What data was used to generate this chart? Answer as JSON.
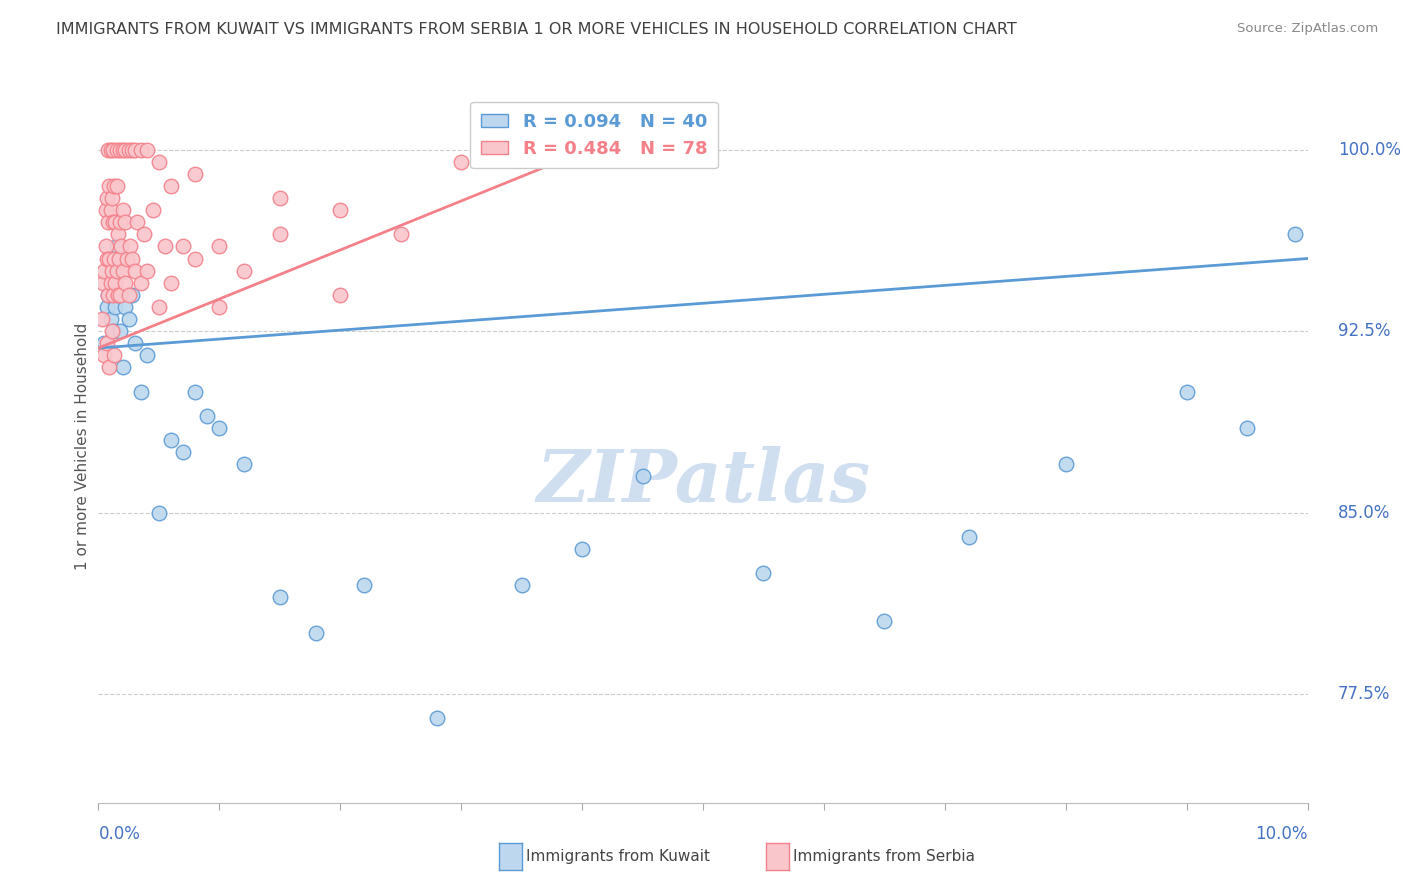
{
  "title": "IMMIGRANTS FROM KUWAIT VS IMMIGRANTS FROM SERBIA 1 OR MORE VEHICLES IN HOUSEHOLD CORRELATION CHART",
  "source": "Source: ZipAtlas.com",
  "ylabel": "1 or more Vehicles in Household",
  "xlim": [
    0.0,
    10.0
  ],
  "ylim": [
    73.0,
    102.5
  ],
  "yticks": [
    77.5,
    85.0,
    92.5,
    100.0
  ],
  "ytick_labels": [
    "77.5%",
    "85.0%",
    "92.5%",
    "100.0%"
  ],
  "kuwait_color": "#5b9bd5",
  "kuwait_color_fill": "#bdd7ee",
  "serbia_color": "#f4808a",
  "serbia_color_fill": "#f9c6cc",
  "kuwait_R": 0.094,
  "kuwait_N": 40,
  "serbia_R": 0.484,
  "serbia_N": 78,
  "bg_color": "#ffffff",
  "grid_color": "#cccccc",
  "title_color": "#404040",
  "tick_label_color": "#4472c4",
  "watermark_color": "#d0dff0",
  "kuwait_x": [
    0.05,
    0.07,
    0.08,
    0.09,
    0.1,
    0.11,
    0.12,
    0.13,
    0.14,
    0.15,
    0.16,
    0.18,
    0.2,
    0.22,
    0.25,
    0.28,
    0.3,
    0.35,
    0.4,
    0.5,
    0.6,
    0.7,
    0.8,
    0.9,
    1.0,
    1.2,
    1.5,
    1.8,
    2.2,
    2.8,
    3.5,
    4.0,
    4.5,
    5.5,
    6.5,
    7.2,
    8.0,
    9.0,
    9.5,
    9.9
  ],
  "kuwait_y": [
    92.0,
    93.5,
    94.0,
    95.5,
    93.0,
    94.5,
    92.5,
    95.0,
    93.5,
    96.0,
    94.0,
    92.5,
    91.0,
    93.5,
    93.0,
    94.0,
    92.0,
    90.0,
    91.5,
    85.0,
    88.0,
    87.5,
    90.0,
    89.0,
    88.5,
    87.0,
    81.5,
    80.0,
    82.0,
    76.5,
    82.0,
    83.5,
    86.5,
    82.5,
    80.5,
    84.0,
    87.0,
    90.0,
    88.5,
    96.5
  ],
  "serbia_x": [
    0.03,
    0.04,
    0.05,
    0.06,
    0.06,
    0.07,
    0.07,
    0.08,
    0.08,
    0.09,
    0.09,
    0.1,
    0.1,
    0.11,
    0.11,
    0.12,
    0.12,
    0.13,
    0.13,
    0.14,
    0.14,
    0.15,
    0.15,
    0.16,
    0.16,
    0.17,
    0.18,
    0.18,
    0.19,
    0.2,
    0.2,
    0.22,
    0.22,
    0.24,
    0.25,
    0.26,
    0.28,
    0.3,
    0.32,
    0.35,
    0.38,
    0.4,
    0.45,
    0.5,
    0.55,
    0.6,
    0.7,
    0.8,
    1.0,
    1.2,
    1.5,
    2.0,
    2.5,
    0.08,
    0.1,
    0.12,
    0.15,
    0.18,
    0.2,
    0.22,
    0.25,
    0.28,
    0.3,
    0.35,
    0.4,
    0.5,
    0.6,
    0.8,
    1.0,
    1.5,
    2.0,
    3.0,
    3.8,
    0.05,
    0.07,
    0.09,
    0.11,
    0.13
  ],
  "serbia_y": [
    93.0,
    94.5,
    95.0,
    96.0,
    97.5,
    95.5,
    98.0,
    94.0,
    97.0,
    95.5,
    98.5,
    94.5,
    97.5,
    95.0,
    98.0,
    94.0,
    97.0,
    95.5,
    98.5,
    94.5,
    97.0,
    95.0,
    98.5,
    94.0,
    96.5,
    95.5,
    97.0,
    94.0,
    96.0,
    95.0,
    97.5,
    94.5,
    97.0,
    95.5,
    94.0,
    96.0,
    95.5,
    95.0,
    97.0,
    94.5,
    96.5,
    95.0,
    97.5,
    93.5,
    96.0,
    94.5,
    96.0,
    95.5,
    93.5,
    95.0,
    96.5,
    94.0,
    96.5,
    100.0,
    100.0,
    100.0,
    100.0,
    100.0,
    100.0,
    100.0,
    100.0,
    100.0,
    100.0,
    100.0,
    100.0,
    99.5,
    98.5,
    99.0,
    96.0,
    98.0,
    97.5,
    99.5,
    100.0,
    91.5,
    92.0,
    91.0,
    92.5,
    91.5
  ]
}
